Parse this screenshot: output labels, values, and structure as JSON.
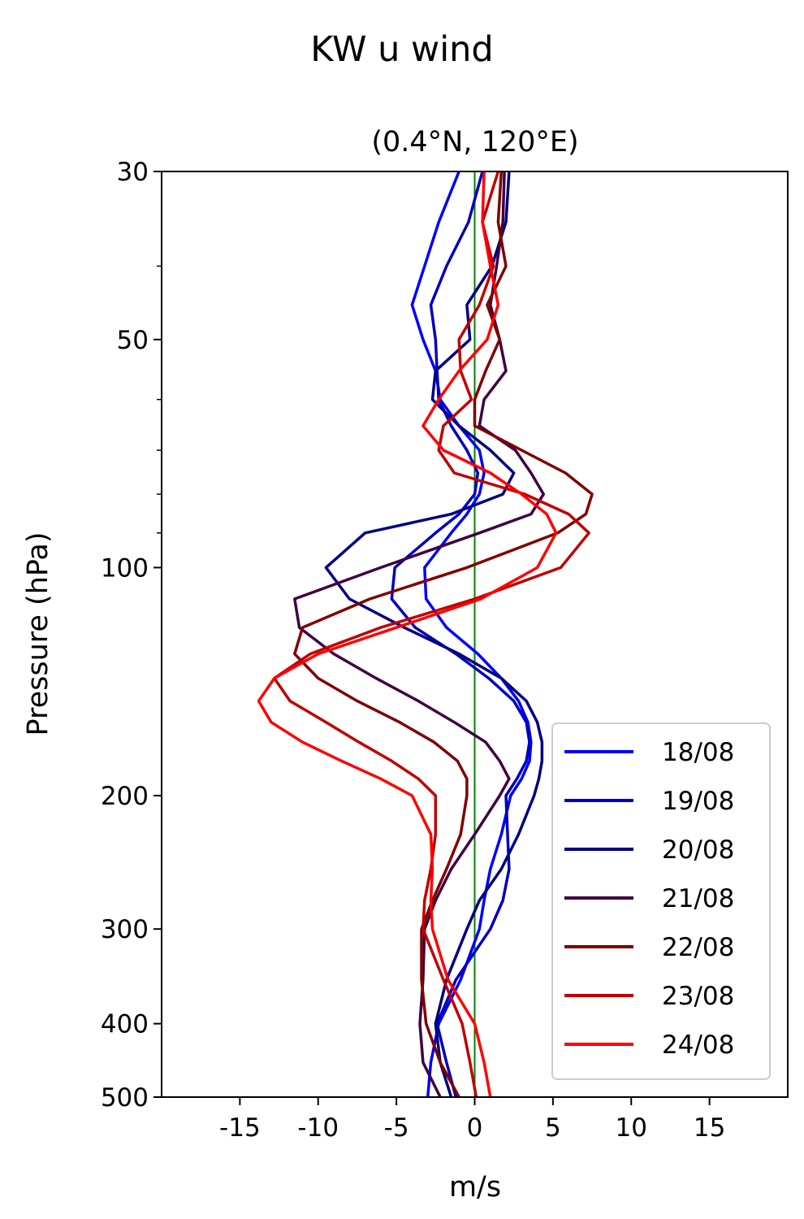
{
  "chart_data": {
    "type": "line",
    "orientation": "vertical-profile",
    "title": "KW u wind",
    "subtitle": "(0.4°N, 120°E)",
    "xlabel": "m/s",
    "ylabel": "Pressure (hPa)",
    "xlim": [
      -20,
      20
    ],
    "ylim": [
      500,
      30
    ],
    "y_scale": "log",
    "x_ticks": [
      -15,
      -10,
      -5,
      0,
      5,
      10,
      15
    ],
    "x_tick_labels": [
      "-15",
      "-10",
      "-5",
      "0",
      "5",
      "10",
      "15"
    ],
    "y_ticks": [
      30,
      50,
      100,
      200,
      300,
      400,
      500
    ],
    "y_tick_labels": [
      "30",
      "50",
      "100",
      "200",
      "300",
      "400",
      "500"
    ],
    "y_minor_ticks": [
      40,
      60,
      70,
      80,
      90
    ],
    "zero_line_color": "#008000",
    "legend_position": "lower-right",
    "levels": [
      30,
      35,
      40,
      45,
      50,
      55,
      60,
      65,
      70,
      75,
      80,
      85,
      90,
      100,
      110,
      120,
      130,
      140,
      150,
      160,
      170,
      180,
      190,
      200,
      225,
      250,
      275,
      300,
      350,
      400,
      450,
      500
    ],
    "series": [
      {
        "name": "18/08",
        "color": "#0000ff",
        "u": [
          -1.0,
          -2.3,
          -3.2,
          -4.0,
          -3.3,
          -2.5,
          -2.2,
          -1.0,
          0.3,
          0.6,
          0.3,
          -0.5,
          -1.5,
          -3.2,
          -3.1,
          -1.8,
          0.2,
          1.7,
          2.8,
          3.4,
          3.6,
          3.5,
          3.0,
          2.3,
          1.7,
          1.0,
          0.6,
          0.3,
          -0.9,
          -2.3,
          -2.8,
          -3.0
        ]
      },
      {
        "name": "19/08",
        "color": "#0000c0",
        "u": [
          0.5,
          -0.4,
          -1.8,
          -2.8,
          -2.5,
          -2.4,
          -2.3,
          -1.5,
          -0.5,
          0.2,
          0.0,
          -1.0,
          -2.5,
          -5.1,
          -5.3,
          -3.8,
          -1.2,
          0.9,
          2.5,
          3.3,
          3.5,
          3.3,
          2.7,
          2.0,
          2.1,
          2.2,
          1.8,
          1.0,
          -1.2,
          -2.4,
          -1.8,
          -1.2
        ]
      },
      {
        "name": "20/08",
        "color": "#000080",
        "u": [
          2.2,
          2.0,
          1.1,
          -0.5,
          -0.3,
          -2.5,
          -2.7,
          -1.0,
          1.0,
          2.5,
          1.8,
          -1.5,
          -7.0,
          -9.5,
          -8.0,
          -4.5,
          -1.0,
          1.7,
          3.3,
          4.0,
          4.3,
          4.3,
          4.1,
          3.8,
          2.8,
          1.7,
          0.3,
          -0.5,
          -1.8,
          -2.5,
          -2.2,
          -1.5
        ]
      },
      {
        "name": "21/08",
        "color": "#400040",
        "u": [
          1.9,
          1.8,
          1.4,
          1.0,
          1.6,
          2.0,
          0.6,
          0.3,
          2.6,
          3.6,
          4.4,
          3.6,
          0.3,
          -6.0,
          -11.5,
          -11.2,
          -9.0,
          -6.3,
          -3.6,
          -1.3,
          0.7,
          1.6,
          2.2,
          1.6,
          0.0,
          -1.5,
          -2.5,
          -3.2,
          -3.3,
          -3.5,
          -3.3,
          -2.2
        ]
      },
      {
        "name": "22/08",
        "color": "#800000",
        "u": [
          1.7,
          1.5,
          2.0,
          0.8,
          1.6,
          0.7,
          0.0,
          0.0,
          3.0,
          5.8,
          7.5,
          7.1,
          5.3,
          -0.5,
          -6.7,
          -11.0,
          -11.5,
          -10.0,
          -7.5,
          -4.8,
          -2.6,
          -1.1,
          -0.5,
          -0.5,
          -0.9,
          -1.8,
          -2.7,
          -3.4,
          -3.4,
          -3.1,
          -2.2,
          -1.0
        ]
      },
      {
        "name": "23/08",
        "color": "#c00000",
        "u": [
          1.5,
          0.5,
          1.2,
          0.3,
          -1.0,
          -0.9,
          -0.2,
          -2.0,
          -2.3,
          -1.3,
          3.2,
          6.0,
          7.3,
          5.5,
          0.0,
          -6.0,
          -10.5,
          -12.8,
          -11.8,
          -9.5,
          -7.4,
          -5.3,
          -3.6,
          -2.5,
          -2.5,
          -2.8,
          -3.2,
          -3.3,
          -2.0,
          -0.8,
          -0.3,
          0.1
        ]
      },
      {
        "name": "24/08",
        "color": "#ff0000",
        "u": [
          0.6,
          0.5,
          1.0,
          1.5,
          0.8,
          -1.0,
          -2.3,
          -3.3,
          -2.0,
          1.0,
          3.0,
          4.6,
          5.2,
          4.0,
          0.4,
          -5.0,
          -10.0,
          -12.8,
          -13.8,
          -13.0,
          -11.0,
          -8.5,
          -6.0,
          -4.0,
          -2.8,
          -2.7,
          -2.8,
          -2.7,
          -1.7,
          0.0,
          0.6,
          1.0
        ]
      }
    ]
  }
}
